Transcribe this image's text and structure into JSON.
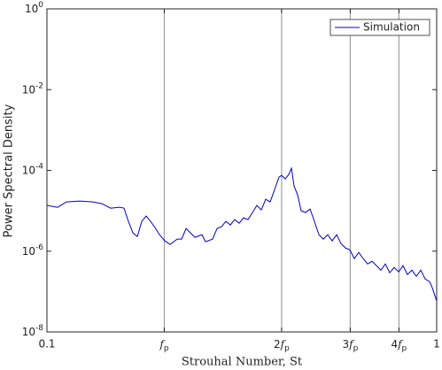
{
  "chart_data": {
    "type": "line",
    "title": null,
    "xlabel": "Strouhal Number, St",
    "ylabel": "Power Spectral Density",
    "xscale": "log",
    "yscale": "log",
    "xlim": [
      0.1,
      1
    ],
    "ylim": [
      1e-08,
      1
    ],
    "xticks": [
      {
        "value": 0.1,
        "label": "0.1"
      },
      {
        "value": 0.2,
        "label": "fp"
      },
      {
        "value": 0.4,
        "label": "2fp"
      },
      {
        "value": 0.6,
        "label": "3fp"
      },
      {
        "value": 0.8,
        "label": "4fp"
      },
      {
        "value": 1,
        "label": "1"
      }
    ],
    "yticks": [
      {
        "value": 1e-08,
        "label": "10^-8"
      },
      {
        "value": 1e-06,
        "label": "10^-6"
      },
      {
        "value": 0.0001,
        "label": "10^-4"
      },
      {
        "value": 0.01,
        "label": "10^-2"
      },
      {
        "value": 1,
        "label": "10^0"
      }
    ],
    "vlines": [
      0.2,
      0.4,
      0.6,
      0.8
    ],
    "vline_color": "#a0a0a0",
    "legend": "northeast",
    "x": [
      0.1,
      0.1065,
      0.1122,
      0.1214,
      0.1313,
      0.1383,
      0.1457,
      0.1536,
      0.1577,
      0.1618,
      0.1662,
      0.1706,
      0.1751,
      0.1797,
      0.1845,
      0.1894,
      0.1944,
      0.2006,
      0.207,
      0.2159,
      0.2216,
      0.2275,
      0.2335,
      0.2397,
      0.2499,
      0.2552,
      0.2661,
      0.2732,
      0.2804,
      0.2878,
      0.2955,
      0.3032,
      0.3113,
      0.3195,
      0.328,
      0.3368,
      0.3456,
      0.3548,
      0.3642,
      0.3739,
      0.3838,
      0.3939,
      0.4002,
      0.4087,
      0.4173,
      0.424,
      0.4306,
      0.4397,
      0.449,
      0.4609,
      0.4732,
      0.4857,
      0.4986,
      0.5119,
      0.5253,
      0.5394,
      0.5537,
      0.568,
      0.5833,
      0.5988,
      0.6146,
      0.631,
      0.6477,
      0.6649,
      0.6826,
      0.7007,
      0.7192,
      0.7383,
      0.7579,
      0.778,
      0.7987,
      0.8197,
      0.8414,
      0.8638,
      0.8867,
      0.9102,
      0.9343,
      0.959,
      0.9741,
      1.0
    ],
    "series": [
      {
        "name": "Simulation",
        "color": "#0000cc",
        "values": [
          1.36e-05,
          1.22e-05,
          1.66e-05,
          1.74e-05,
          1.66e-05,
          1.5e-05,
          1.16e-05,
          1.22e-05,
          1.16e-05,
          5.46e-06,
          2.83e-06,
          2.31e-06,
          5.46e-06,
          7.4e-06,
          5.46e-06,
          3.83e-06,
          2.56e-06,
          1.8e-06,
          1.47e-06,
          1.99e-06,
          1.99e-06,
          3.64e-06,
          2.83e-06,
          2.2e-06,
          2.56e-06,
          1.71e-06,
          1.99e-06,
          3.64e-06,
          4.03e-06,
          5.46e-06,
          4.46e-06,
          6.04e-06,
          4.93e-06,
          6.68e-06,
          6.04e-06,
          9.04e-06,
          1.36e-05,
          1.05e-05,
          1.93e-05,
          1.66e-05,
          3.36e-05,
          6.81e-05,
          7.54e-05,
          6.15e-05,
          7.93e-05,
          0.000113,
          4.11e-05,
          2.48e-05,
          1e-05,
          9.04e-06,
          1.11e-05,
          5.46e-06,
          2.56e-06,
          1.99e-06,
          2.56e-06,
          1.8e-06,
          2.56e-06,
          1.55e-06,
          1.2e-06,
          1.08e-06,
          6.55e-07,
          9.31e-07,
          6.55e-07,
          4.83e-07,
          5.62e-07,
          4.37e-07,
          3.39e-07,
          4.83e-07,
          2.92e-07,
          3.95e-07,
          3.07e-07,
          4.37e-07,
          2.64e-07,
          3.39e-07,
          2.38e-07,
          3.39e-07,
          2.05e-07,
          1.76e-07,
          1.24e-07,
          5.8e-08
        ]
      }
    ]
  }
}
